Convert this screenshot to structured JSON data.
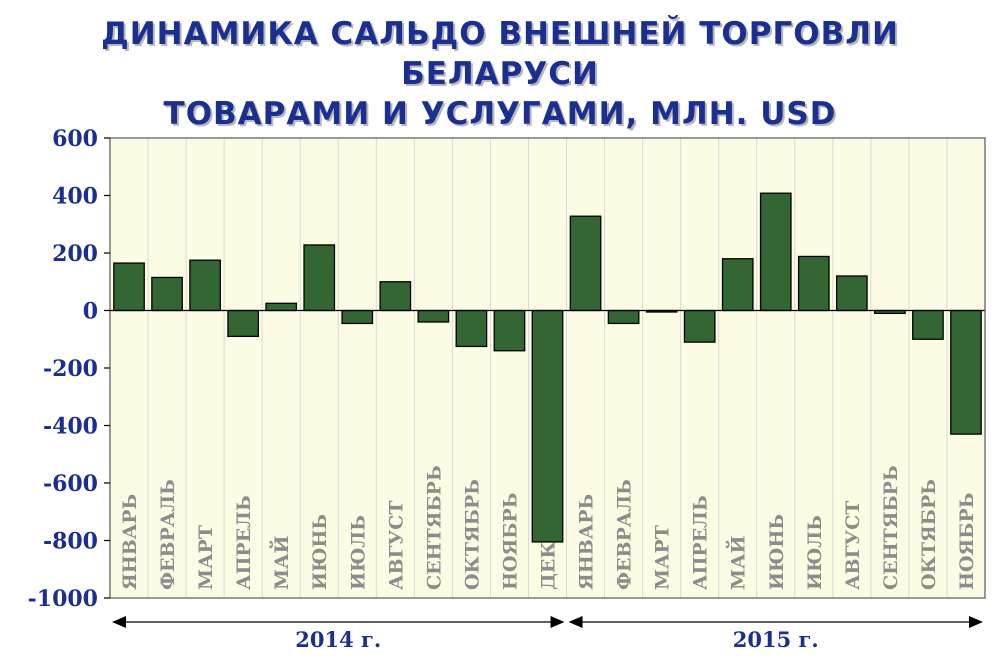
{
  "chart_data": {
    "type": "bar",
    "title": "ДИНАМИКА САЛЬДО ВНЕШНЕЙ ТОРГОВЛИ БЕЛАРУСИ ТОВАРАМИ И УСЛУГАМИ, МЛН. USD",
    "title_lines": [
      "ДИНАМИКА САЛЬДО ВНЕШНЕЙ ТОРГОВЛИ БЕЛАРУСИ",
      "ТОВАРАМИ И УСЛУГАМИ, МЛН. USD"
    ],
    "categories": [
      "ЯНВАРЬ",
      "ФЕВРАЛЬ",
      "МАРТ",
      "АПРЕЛЬ",
      "МАЙ",
      "ИЮНЬ",
      "ИЮЛЬ",
      "АВГУСТ",
      "СЕНТЯБРЬ",
      "ОКТЯБРЬ",
      "НОЯБРЬ",
      "ДЕКАБРЬ",
      "ЯНВАРЬ",
      "ФЕВРАЛЬ",
      "МАРТ",
      "АПРЕЛЬ",
      "МАЙ",
      "ИЮНЬ",
      "ИЮЛЬ",
      "АВГУСТ",
      "СЕНТЯБРЬ",
      "ОКТЯБРЬ",
      "НОЯБРЬ"
    ],
    "values": [
      165,
      115,
      175,
      -90,
      25,
      228,
      -45,
      100,
      -40,
      -125,
      -140,
      -805,
      328,
      -45,
      -5,
      -110,
      180,
      408,
      188,
      120,
      -10,
      -100,
      -430
    ],
    "ylim": [
      -1000,
      600
    ],
    "yticks": [
      "600",
      "400",
      "200",
      "0",
      "-200",
      "-400",
      "-600",
      "-800",
      "-1000"
    ],
    "ytick_values": [
      600,
      400,
      200,
      0,
      -200,
      -400,
      -600,
      -800,
      -1000
    ],
    "groups": [
      {
        "label": "2014 г.",
        "count": 12
      },
      {
        "label": "2015 г.",
        "count": 11
      }
    ],
    "xlabel": "",
    "ylabel": "",
    "grid": "vertical",
    "colors": {
      "bar": "#336633",
      "plot_bg": "#fcfce4",
      "axis_text": "#1a2f8f",
      "category_text": "#8c8c8c",
      "grid": "#d8d8d8"
    }
  }
}
